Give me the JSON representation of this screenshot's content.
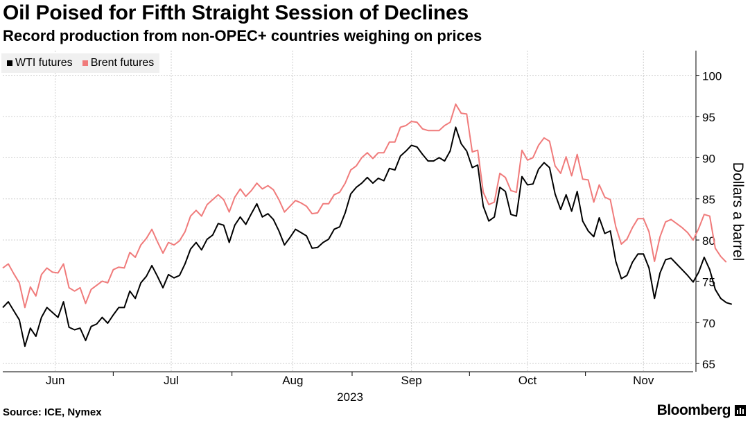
{
  "header": {
    "title": "Oil Poised for Fifth Straight Session of Declines",
    "subtitle": "Record production from non-OPEC+ countries weighing on prices"
  },
  "footer": {
    "source": "Source: ICE, Nymex",
    "brand": "Bloomberg"
  },
  "colors": {
    "wti": "#000000",
    "brent": "#f07b7b",
    "grid": "#cfcfcf",
    "legend_bg": "#f0f0f0"
  },
  "chart_data": {
    "type": "line",
    "title": "Oil Poised for Fifth Straight Session of Declines",
    "subtitle": "Record production from non-OPEC+ countries weighing on prices",
    "xlabel": "2023",
    "ylabel": "Dollars a barrel",
    "ylim": [
      64,
      103
    ],
    "yticks": [
      65,
      70,
      75,
      80,
      85,
      90,
      95,
      100
    ],
    "x_range": [
      0,
      125
    ],
    "xticks": [
      {
        "label": "Jun",
        "x": 9.5
      },
      {
        "label": "Jul",
        "x": 30.5
      },
      {
        "label": "Aug",
        "x": 52.5
      },
      {
        "label": "Sep",
        "x": 74
      },
      {
        "label": "Oct",
        "x": 95
      },
      {
        "label": "Nov",
        "x": 116
      }
    ],
    "year_label": "2023",
    "grid": true,
    "legend_position": "top-left",
    "series": [
      {
        "name": "WTI futures",
        "color": "#000000",
        "values": [
          71.8,
          72.5,
          71.4,
          70.3,
          67.1,
          69.3,
          68.3,
          70.6,
          71.8,
          71.2,
          70.6,
          72.5,
          69.4,
          69.1,
          69.3,
          67.8,
          69.5,
          69.8,
          70.6,
          69.9,
          70.9,
          71.8,
          71.8,
          73.8,
          72.9,
          74.8,
          75.6,
          76.9,
          75.6,
          74.2,
          75.8,
          75.4,
          75.7,
          77.1,
          78.9,
          79.7,
          78.8,
          80.1,
          80.6,
          82.0,
          81.8,
          79.7,
          81.8,
          82.8,
          81.9,
          83.2,
          84.4,
          82.8,
          83.2,
          82.5,
          81.1,
          79.4,
          80.3,
          81.3,
          80.9,
          80.5,
          79.0,
          79.1,
          79.7,
          80.1,
          81.3,
          81.6,
          83.3,
          85.6,
          86.4,
          86.9,
          87.6,
          86.9,
          87.5,
          87.2,
          88.7,
          88.5,
          90.2,
          90.8,
          91.5,
          91.3,
          90.4,
          89.6,
          89.6,
          90.0,
          89.6,
          90.8,
          93.7,
          91.7,
          90.8,
          88.8,
          89.1,
          84.1,
          82.3,
          82.8,
          86.4,
          85.9,
          83.1,
          82.9,
          87.7,
          86.7,
          86.8,
          88.6,
          89.4,
          88.8,
          85.6,
          83.7,
          85.5,
          83.5,
          85.9,
          82.3,
          81.1,
          80.4,
          82.7,
          80.8,
          81.1,
          77.4,
          75.3,
          75.7,
          77.3,
          78.3,
          78.3,
          76.6,
          72.9,
          76.0,
          77.6,
          77.8,
          77.1,
          76.4,
          75.7,
          74.9,
          76.1,
          77.9,
          76.4,
          74.0,
          72.9,
          72.4,
          72.2
        ]
      },
      {
        "name": "Brent futures",
        "color": "#f07b7b",
        "values": [
          76.6,
          77.1,
          75.9,
          74.8,
          71.8,
          74.3,
          73.2,
          75.8,
          76.6,
          76.1,
          76.0,
          77.1,
          74.2,
          73.8,
          74.2,
          72.3,
          74.0,
          74.5,
          75.0,
          74.8,
          76.4,
          76.7,
          76.6,
          78.5,
          77.9,
          79.4,
          80.2,
          81.3,
          79.8,
          78.4,
          79.7,
          79.4,
          79.9,
          81.0,
          82.9,
          83.6,
          82.9,
          84.3,
          84.9,
          85.5,
          84.9,
          83.4,
          85.2,
          86.2,
          85.3,
          86.0,
          86.9,
          86.2,
          86.6,
          86.1,
          84.9,
          83.4,
          84.1,
          84.8,
          84.5,
          84.1,
          83.2,
          83.3,
          84.4,
          84.4,
          85.5,
          85.8,
          86.9,
          88.5,
          89.0,
          90.0,
          90.6,
          89.9,
          90.6,
          90.6,
          91.9,
          91.9,
          93.7,
          93.9,
          94.4,
          94.3,
          93.5,
          93.3,
          93.3,
          93.3,
          93.9,
          94.3,
          96.5,
          95.4,
          95.3,
          90.7,
          90.9,
          85.8,
          84.3,
          84.6,
          88.1,
          87.6,
          86.0,
          85.8,
          90.9,
          89.7,
          90.0,
          91.5,
          92.4,
          92.0,
          89.0,
          88.1,
          90.1,
          87.8,
          90.4,
          87.4,
          87.3,
          84.6,
          86.7,
          85.2,
          84.9,
          81.6,
          79.5,
          80.1,
          81.5,
          82.6,
          82.6,
          81.0,
          77.4,
          80.4,
          82.2,
          82.5,
          82.0,
          81.5,
          80.9,
          80.0,
          81.4,
          83.1,
          82.9,
          79.0,
          78.0,
          77.3
        ]
      }
    ]
  }
}
